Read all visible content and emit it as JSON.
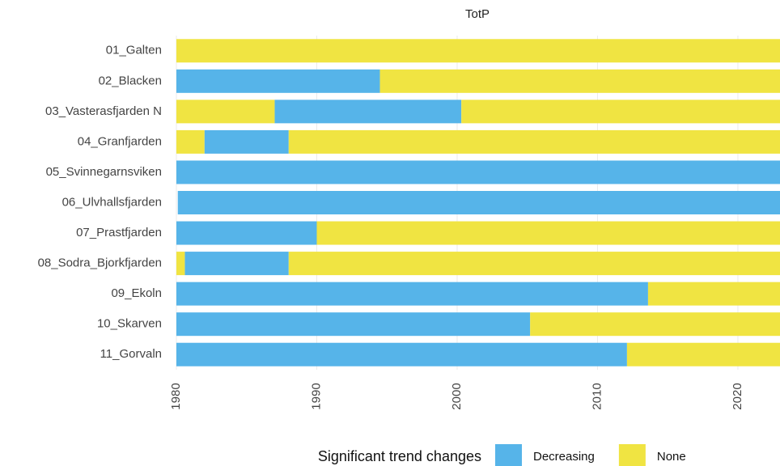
{
  "chart_data": {
    "type": "timeline",
    "title": "TotP",
    "categories": [
      "01_Galten",
      "02_Blacken",
      "03_Vasterasfjarden N",
      "04_Granfjarden",
      "05_Svinnegarnsviken",
      "06_Ulvhallsfjarden",
      "07_Prastfjarden",
      "08_Sodra_Bjorkfjarden",
      "09_Ekoln",
      "10_Skarven",
      "11_Gorvaln"
    ],
    "series": [
      {
        "name": "Decreasing",
        "color": "#56b4e9",
        "values": [
          [],
          [
            [
              1980,
              1994.5
            ]
          ],
          [
            [
              1987,
              2000.3
            ]
          ],
          [
            [
              1982,
              1988
            ]
          ],
          [
            [
              1980,
              2023
            ]
          ],
          [
            [
              1980.1,
              2023
            ]
          ],
          [
            [
              1980,
              1990
            ]
          ],
          [
            [
              1980.6,
              1988
            ]
          ],
          [
            [
              1980,
              2013.6
            ]
          ],
          [
            [
              1980,
              2005.2
            ]
          ],
          [
            [
              1980,
              2012.1
            ]
          ]
        ]
      },
      {
        "name": "None",
        "color": "#f0e442",
        "values": [
          [
            [
              1980,
              2023
            ]
          ],
          [
            [
              1994.5,
              2023
            ]
          ],
          [
            [
              1980,
              1987
            ],
            [
              2000.3,
              2023
            ]
          ],
          [
            [
              1980,
              1982
            ],
            [
              1988,
              2023
            ]
          ],
          [],
          [],
          [
            [
              1990,
              2023
            ]
          ],
          [
            [
              1980,
              1980.6
            ],
            [
              1988,
              2023
            ]
          ],
          [
            [
              2013.6,
              2023
            ]
          ],
          [
            [
              2005.2,
              2023
            ]
          ],
          [
            [
              2012.1,
              2023
            ]
          ]
        ]
      }
    ],
    "xlim": [
      1980,
      2023
    ],
    "xticks": [
      1980,
      1990,
      2000,
      2010,
      2020
    ],
    "grid": true,
    "legend_title": "Significant trend changes",
    "legend_position": "bottom"
  }
}
